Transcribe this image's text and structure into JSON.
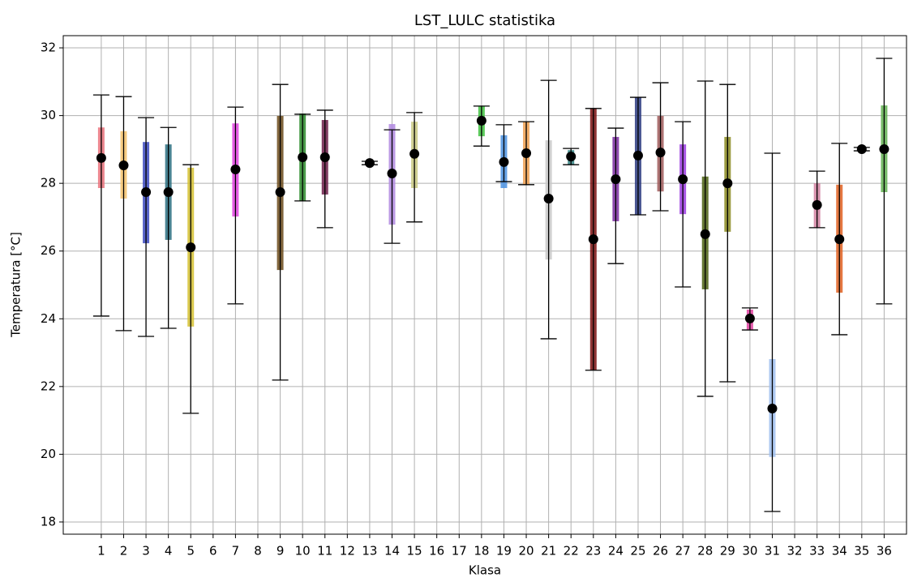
{
  "chart_data": {
    "type": "errorbar",
    "title": "LST_LULC statistika",
    "x_label": "Klasa",
    "y_label": "Temperatura [°C]",
    "x": [
      1,
      2,
      3,
      4,
      5,
      6,
      7,
      8,
      9,
      10,
      11,
      12,
      13,
      14,
      15,
      16,
      17,
      18,
      19,
      20,
      21,
      22,
      23,
      24,
      25,
      26,
      27,
      28,
      29,
      30,
      31,
      32,
      33,
      34,
      35,
      36
    ],
    "mean": [
      28.75,
      28.53,
      27.74,
      27.74,
      26.11,
      null,
      28.41,
      null,
      27.74,
      28.77,
      28.77,
      null,
      28.6,
      28.29,
      28.87,
      null,
      null,
      29.85,
      28.63,
      28.89,
      27.55,
      28.79,
      26.35,
      28.12,
      28.82,
      28.91,
      28.12,
      26.5,
      28.0,
      24.01,
      21.35,
      null,
      27.36,
      26.35,
      29.01,
      29.01
    ],
    "min": [
      24.08,
      23.65,
      23.48,
      23.72,
      21.21,
      null,
      24.44,
      null,
      22.19,
      27.48,
      26.69,
      null,
      28.55,
      26.23,
      26.86,
      null,
      null,
      29.1,
      28.05,
      27.96,
      23.41,
      28.55,
      22.48,
      25.63,
      27.07,
      27.19,
      24.94,
      21.71,
      22.14,
      23.67,
      18.31,
      null,
      26.69,
      23.53,
      28.96,
      24.44
    ],
    "max": [
      30.61,
      30.56,
      29.94,
      29.65,
      28.55,
      null,
      30.25,
      null,
      30.92,
      30.04,
      30.16,
      null,
      28.65,
      29.58,
      30.09,
      null,
      null,
      30.28,
      29.73,
      29.82,
      31.04,
      29.03,
      30.21,
      29.63,
      30.54,
      30.97,
      29.82,
      31.02,
      30.92,
      24.32,
      28.89,
      null,
      28.36,
      29.18,
      29.06,
      31.69
    ],
    "low": [
      27.86,
      27.55,
      26.23,
      26.33,
      23.77,
      null,
      27.02,
      null,
      25.44,
      27.48,
      27.67,
      null,
      28.57,
      26.78,
      27.86,
      null,
      null,
      29.39,
      27.86,
      27.96,
      25.75,
      28.55,
      22.48,
      26.88,
      27.07,
      27.76,
      27.09,
      24.87,
      26.57,
      23.67,
      19.92,
      null,
      26.69,
      24.77,
      28.98,
      27.74
    ],
    "high": [
      29.65,
      29.54,
      29.22,
      29.15,
      28.46,
      null,
      29.77,
      null,
      29.99,
      30.06,
      29.87,
      null,
      28.63,
      29.75,
      29.82,
      null,
      null,
      30.28,
      29.42,
      29.82,
      29.27,
      28.98,
      30.21,
      29.37,
      30.54,
      29.99,
      29.15,
      28.2,
      29.37,
      24.27,
      22.81,
      null,
      28.0,
      27.96,
      29.04,
      30.3
    ],
    "colors": [
      "#e8717a",
      "#f5c26b",
      "#3a48c0",
      "#2a6f80",
      "#d4c030",
      null,
      "#e040e0",
      null,
      "#6b4a1a",
      "#2a8a2a",
      "#6a1a45",
      null,
      "#404040",
      "#b088e0",
      "#c8c880",
      null,
      null,
      "#40c040",
      "#4a90e0",
      "#f0a050",
      "#c8c8c8",
      "#308080",
      "#7a1010",
      "#7a2aa0",
      "#2a3a80",
      "#a05a5a",
      "#9a3ae0",
      "#4a6010",
      "#8a8a20",
      "#e040a0",
      "#a0c0f0",
      null,
      "#d080a0",
      "#e06020",
      "#40a040",
      "#60b050"
    ],
    "xlim": [
      -0.7,
      37.0
    ],
    "ylim": [
      17.64,
      32.36
    ],
    "xticks": [
      1,
      2,
      3,
      4,
      5,
      6,
      7,
      8,
      9,
      10,
      11,
      12,
      13,
      14,
      15,
      16,
      17,
      18,
      19,
      20,
      21,
      22,
      23,
      24,
      25,
      26,
      27,
      28,
      29,
      30,
      31,
      32,
      33,
      34,
      35,
      36
    ],
    "yticks": [
      18,
      20,
      22,
      24,
      26,
      28,
      30,
      32
    ],
    "grid": true
  }
}
